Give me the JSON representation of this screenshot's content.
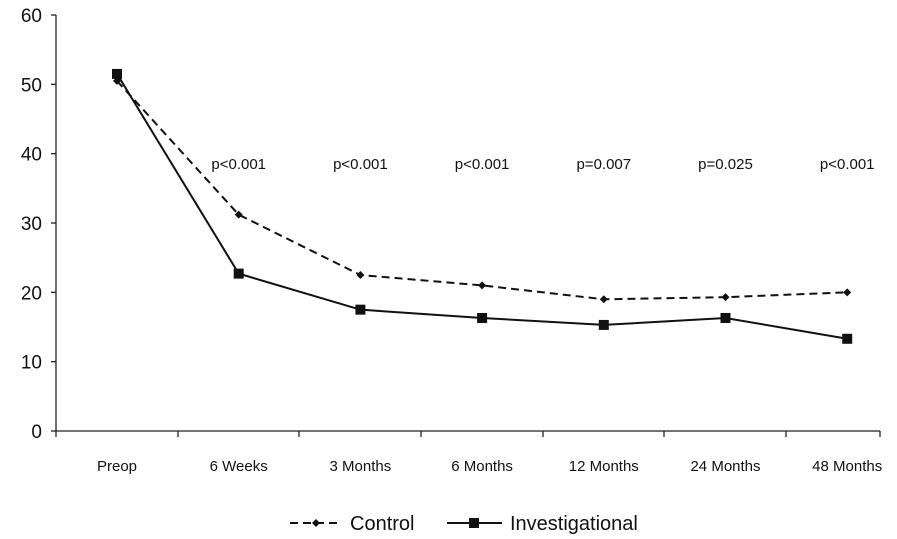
{
  "chart_data": {
    "type": "line",
    "categories": [
      "Preop",
      "6 Weeks",
      "3 Months",
      "6 Months",
      "12 Months",
      "24 Months",
      "48 Months"
    ],
    "series": [
      {
        "name": "Control",
        "values": [
          50.5,
          31.2,
          22.5,
          21.0,
          19.0,
          19.3,
          20.0
        ],
        "style": "dashed",
        "marker": "diamond"
      },
      {
        "name": "Investigational",
        "values": [
          51.5,
          22.7,
          17.5,
          16.3,
          15.3,
          16.3,
          13.3
        ],
        "style": "solid",
        "marker": "square"
      }
    ],
    "annotations": [
      null,
      "p<0.001",
      "p<0.001",
      "p<0.001",
      "p=0.007",
      "p=0.025",
      "p<0.001"
    ],
    "yticks": [
      0,
      10,
      20,
      30,
      40,
      50,
      60
    ],
    "ylim": [
      0,
      60
    ],
    "grid": false,
    "legend_position": "bottom",
    "colors": {
      "line": "#111111",
      "axis": "#222222"
    }
  }
}
